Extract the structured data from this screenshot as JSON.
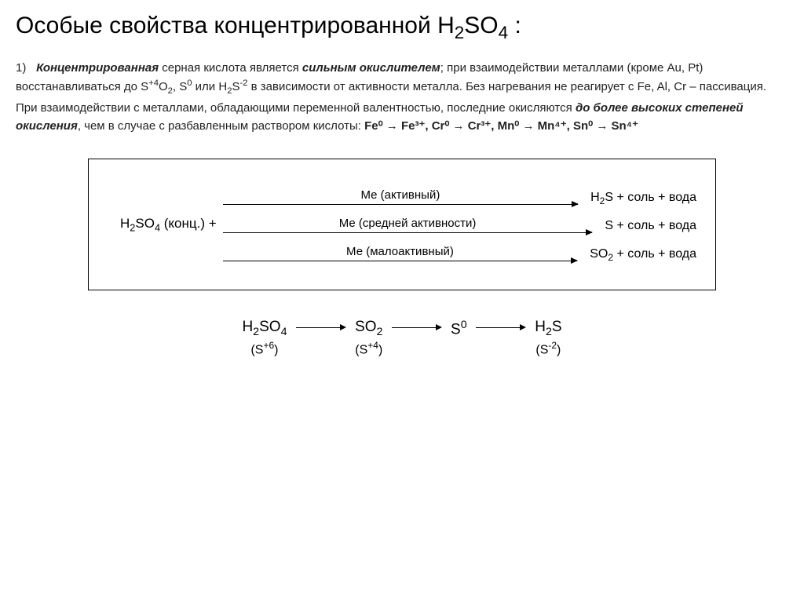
{
  "title_prefix": "Особые свойства концентрированной ",
  "title_formula": {
    "base": "H",
    "sub1": "2",
    "mid": "SO",
    "sub2": "4",
    "suffix": " :"
  },
  "para1": {
    "num": "1)",
    "t1": "Концентрированная",
    "t2": " серная кислота является ",
    "t3": "сильным окислителем",
    "t4": "; при взаимодействии металлами (кроме Au, Pt) восстанавливаться до S",
    "sup1": "+4",
    "t5": "O",
    "sub1": "2",
    "t6": ", S",
    "sup2": "0",
    "t7": " или H",
    "sub2": "2",
    "t8": "S",
    "sup3": "-2",
    "t9": " в зависимости от активности металла. Без нагревания не реагирует с Fe, Al, Cr – пассивация. При взаимодействии с металлами, обладающими переменной валентностью, последние окисляются ",
    "t10": "до более высоких степеней окисления",
    "t11": ", чем в случае с разбавленным раствором кислоты: ",
    "redox": "Fe⁰ → Fe³⁺, Cr⁰ → Cr³⁺, Mn⁰ → Mn⁴⁺, Sn⁰ → Sn⁴⁺"
  },
  "diagram": {
    "left": {
      "a": "H",
      "b": "2",
      "c": "SO",
      "d": "4",
      "e": " (конц.)  +"
    },
    "rows": [
      {
        "label": "Ме (активный)",
        "result_pre": "H",
        "result_sub": "2",
        "result_post": "S + соль + вода"
      },
      {
        "label": "Ме (средней активности)",
        "result_pre": "",
        "result_sub": "",
        "result_post": "S + соль + вода"
      },
      {
        "label": "Ме (малоактивный)",
        "result_pre": "SO",
        "result_sub": "2",
        "result_post": " + соль + вода"
      }
    ]
  },
  "chain": {
    "t1": {
      "top_a": "H",
      "top_b": "2",
      "top_c": "SO",
      "top_d": "4",
      "state_a": "(S",
      "state_sup": "+6",
      "state_b": ")"
    },
    "t2": {
      "top_a": "SO",
      "top_b": "2",
      "top_c": "",
      "top_d": "",
      "state_a": "(S",
      "state_sup": "+4",
      "state_b": ")"
    },
    "t3": {
      "top_a": "S",
      "top_sup": "0",
      "top_c": "",
      "top_d": "",
      "state_a": "",
      "state_sup": "",
      "state_b": ""
    },
    "t4": {
      "top_a": "H",
      "top_b": "2",
      "top_c": "S",
      "top_d": "",
      "state_a": "(S",
      "state_sup": "-2",
      "state_b": ")"
    }
  }
}
